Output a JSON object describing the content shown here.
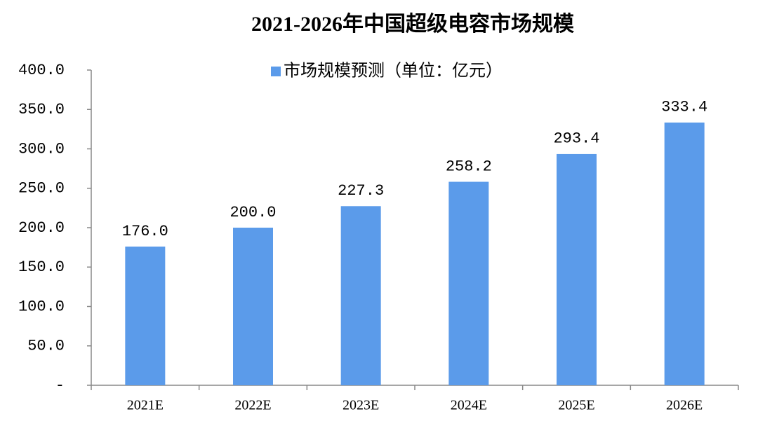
{
  "chart_data": {
    "type": "bar",
    "title": "2021-2026年中国超级电容市场规模",
    "categories": [
      "2021E",
      "2022E",
      "2023E",
      "2024E",
      "2025E",
      "2026E"
    ],
    "series": [
      {
        "name": "市场规模预测（单位：亿元）",
        "color": "#5b9bea",
        "values": [
          176.0,
          200.0,
          227.3,
          258.2,
          293.4,
          333.4
        ],
        "value_labels": [
          "176.0",
          "200.0",
          "227.3",
          "258.2",
          "293.4",
          "333.4"
        ]
      }
    ],
    "ylim": [
      0,
      400
    ],
    "yticks": [
      {
        "value": 0,
        "label": "-"
      },
      {
        "value": 50,
        "label": "50.0"
      },
      {
        "value": 100,
        "label": "100.0"
      },
      {
        "value": 150,
        "label": "150.0"
      },
      {
        "value": 200,
        "label": "200.0"
      },
      {
        "value": 250,
        "label": "250.0"
      },
      {
        "value": 300,
        "label": "300.0"
      },
      {
        "value": 350,
        "label": "350.0"
      },
      {
        "value": 400,
        "label": "400.0"
      }
    ],
    "grid": false,
    "legend": "top"
  }
}
